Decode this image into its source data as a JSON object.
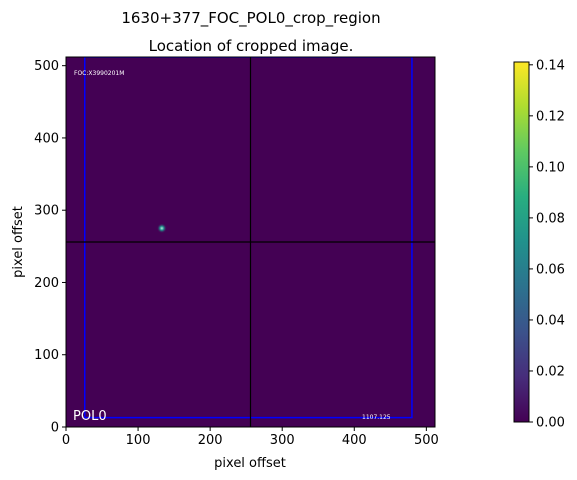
{
  "chart_data": {
    "type": "heatmap",
    "title": "1630+377_FOC_POL0_crop_region",
    "subtitle": "Location of cropped image.",
    "xlabel": "pixel offset",
    "ylabel": "pixel offset",
    "xlim": [
      0,
      512
    ],
    "ylim": [
      0,
      512
    ],
    "x_ticks": [
      0,
      100,
      200,
      300,
      400,
      500
    ],
    "y_ticks": [
      0,
      100,
      200,
      300,
      400,
      500
    ],
    "colormap": "viridis",
    "background_color": "#440154",
    "colorbar": {
      "min": 0.0,
      "max": 0.1411,
      "ticks": [
        "0.00",
        "0.02",
        "0.04",
        "0.06",
        "0.08",
        "0.10",
        "0.12",
        "0.14"
      ]
    },
    "crosshair": {
      "x": 256,
      "y": 256,
      "color": "#000000"
    },
    "crop_rectangle": {
      "x0": 26,
      "y0": 13,
      "x1": 480,
      "y1": 512,
      "color": "#0000ff"
    },
    "point_source": {
      "x": 133,
      "y": 275,
      "peak": 0.14
    },
    "annotations": {
      "top_left": "FOC:X3990201M",
      "bottom_left": "POL0",
      "bottom_right": "1107.125"
    }
  }
}
